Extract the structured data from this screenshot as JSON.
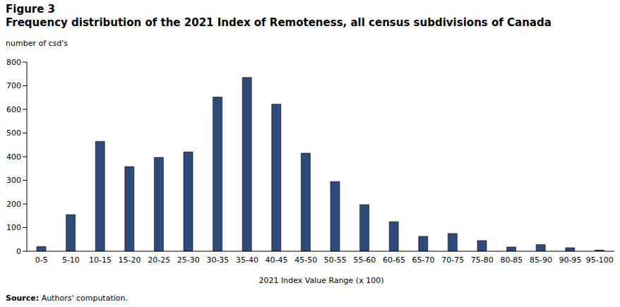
{
  "chart_data": {
    "type": "bar",
    "figure_label": "Figure 3",
    "title": "Frequency distribution of the 2021 Index of Remoteness, all census subdivisions of Canada",
    "y_label": "number of csd's",
    "x_label": "2021 Index Value Range (x 100)",
    "source_label": "Source:",
    "source": "Authors' computation.",
    "categories": [
      "0-5",
      "5-10",
      "10-15",
      "15-20",
      "20-25",
      "25-30",
      "30-35",
      "35-40",
      "40-45",
      "45-50",
      "50-55",
      "55-60",
      "60-65",
      "65-70",
      "70-75",
      "75-80",
      "80-85",
      "85-90",
      "90-95",
      "95-100"
    ],
    "values": [
      20,
      155,
      465,
      358,
      397,
      420,
      652,
      735,
      622,
      415,
      295,
      197,
      125,
      63,
      75,
      45,
      18,
      28,
      15,
      5
    ],
    "color": "#2f4b7c",
    "ylim": [
      0,
      800
    ],
    "yticks": [
      0,
      100,
      200,
      300,
      400,
      500,
      600,
      700,
      800
    ],
    "grid": false
  }
}
